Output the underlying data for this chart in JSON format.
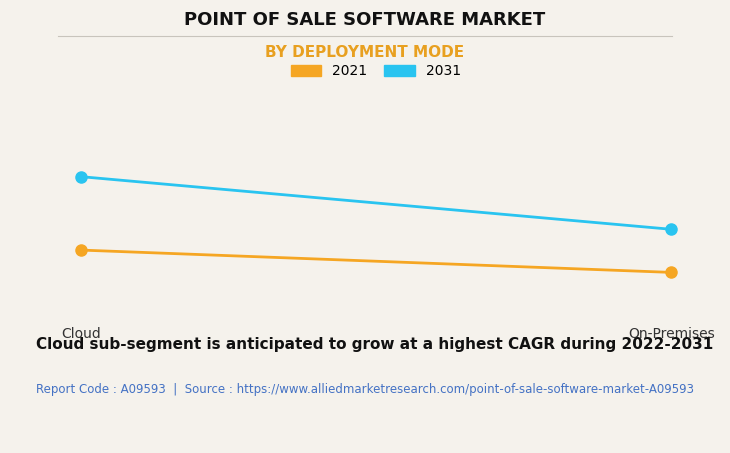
{
  "title": "POINT OF SALE SOFTWARE MARKET",
  "subtitle": "BY DEPLOYMENT MODE",
  "subtitle_color": "#E8A020",
  "categories": [
    "Cloud",
    "On-Premises"
  ],
  "series": [
    {
      "label": "2021",
      "values": [
        0.42,
        0.28
      ],
      "color": "#F5A623",
      "marker": "o",
      "linewidth": 2.0,
      "markersize": 8
    },
    {
      "label": "2031",
      "values": [
        0.88,
        0.55
      ],
      "color": "#29C4F0",
      "marker": "o",
      "linewidth": 2.0,
      "markersize": 8
    }
  ],
  "ylim": [
    0.0,
    1.05
  ],
  "background_color": "#F5F2EC",
  "plot_bg_color": "#F5F2EC",
  "grid_color": "#D8D4CC",
  "title_fontsize": 13,
  "subtitle_fontsize": 11,
  "tick_fontsize": 10,
  "legend_fontsize": 10,
  "footer_text": "Cloud sub-segment is anticipated to grow at a highest CAGR during 2022-2031",
  "source_text": "Report Code : A09593  |  Source : https://www.alliedmarketresearch.com/point-of-sale-software-market-A09593",
  "source_color": "#4472C4",
  "footer_fontsize": 11,
  "source_fontsize": 8.5
}
